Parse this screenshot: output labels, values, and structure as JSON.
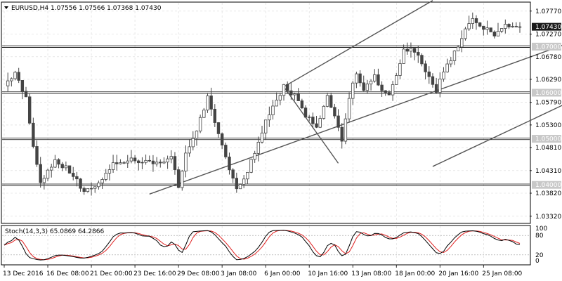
{
  "header": {
    "symbol": "EURUSD,H4",
    "ohlc": "1.07556 1.07566 1.07368 1.07430"
  },
  "oscillator": {
    "label": "Stoch(14,3,3) 65.0869 64.2866",
    "levels": [
      "100",
      "80",
      "20",
      "0"
    ],
    "k_color": "#000000",
    "d_color": "#e02020"
  },
  "colors": {
    "candle": "#444444",
    "grid": "#d8d8d8",
    "channel": "#555555",
    "level_badge": "#c8c8c8",
    "price_badge": "#1a1a1a"
  },
  "chart_data": {
    "type": "candlestick",
    "title": "EURUSD,H4",
    "ylim": [
      1.0318,
      1.0795
    ],
    "price_ticks": [
      "1.07770",
      "1.07270",
      "1.06780",
      "1.06290",
      "1.05790",
      "1.05300",
      "1.04810",
      "1.04310",
      "1.03820",
      "1.03320"
    ],
    "current_price": "1.07430",
    "horizontal_levels": [
      {
        "value": 1.07,
        "label": "1.07000"
      },
      {
        "value": 1.06,
        "label": "1.06000"
      },
      {
        "value": 1.05,
        "label": "1.05000"
      },
      {
        "value": 1.04,
        "label": "1.04000"
      }
    ],
    "date_ticks": [
      "13 Dec 2016",
      "16 Dec 08:00",
      "21 Dec 00:00",
      "23 Dec 16:00",
      "29 Dec 08:00",
      "3 Jan 08:00",
      "6 Jan 00:00",
      "10 Jan 16:00",
      "13 Jan 08:00",
      "18 Jan 00:00",
      "20 Jan 16:00",
      "25 Jan 08:00"
    ],
    "trendlines": [
      {
        "from": [
          40,
          1.038
        ],
        "to": [
          188,
          1.08
        ]
      },
      {
        "from": [
          118,
          1.044
        ],
        "to": [
          188,
          1.07
        ]
      },
      {
        "from": [
          77,
          1.0613
        ],
        "to": [
          92,
          1.0447
        ]
      },
      {
        "from": [
          77,
          1.0613
        ],
        "to": [
          118,
          1.08
        ]
      }
    ],
    "anchors": [
      {
        "i": 0,
        "price": 1.0615
      },
      {
        "i": 3,
        "price": 1.0645
      },
      {
        "i": 6,
        "price": 1.059
      },
      {
        "i": 8,
        "price": 1.048
      },
      {
        "i": 10,
        "price": 1.0405
      },
      {
        "i": 14,
        "price": 1.0455
      },
      {
        "i": 18,
        "price": 1.043
      },
      {
        "i": 22,
        "price": 1.0385
      },
      {
        "i": 26,
        "price": 1.0405
      },
      {
        "i": 30,
        "price": 1.0445
      },
      {
        "i": 34,
        "price": 1.0455
      },
      {
        "i": 38,
        "price": 1.045
      },
      {
        "i": 42,
        "price": 1.045
      },
      {
        "i": 46,
        "price": 1.046
      },
      {
        "i": 48,
        "price": 1.0395
      },
      {
        "i": 50,
        "price": 1.0465
      },
      {
        "i": 53,
        "price": 1.052
      },
      {
        "i": 56,
        "price": 1.059
      },
      {
        "i": 58,
        "price": 1.053
      },
      {
        "i": 61,
        "price": 1.046
      },
      {
        "i": 64,
        "price": 1.0395
      },
      {
        "i": 66,
        "price": 1.041
      },
      {
        "i": 69,
        "price": 1.047
      },
      {
        "i": 72,
        "price": 1.0535
      },
      {
        "i": 74,
        "price": 1.057
      },
      {
        "i": 77,
        "price": 1.0613
      },
      {
        "i": 80,
        "price": 1.0595
      },
      {
        "i": 83,
        "price": 1.055
      },
      {
        "i": 86,
        "price": 1.053
      },
      {
        "i": 89,
        "price": 1.059
      },
      {
        "i": 91,
        "price": 1.0555
      },
      {
        "i": 93,
        "price": 1.05
      },
      {
        "i": 95,
        "price": 1.059
      },
      {
        "i": 97,
        "price": 1.0645
      },
      {
        "i": 99,
        "price": 1.061
      },
      {
        "i": 102,
        "price": 1.064
      },
      {
        "i": 104,
        "price": 1.0605
      },
      {
        "i": 106,
        "price": 1.059
      },
      {
        "i": 108,
        "price": 1.064
      },
      {
        "i": 110,
        "price": 1.069
      },
      {
        "i": 112,
        "price": 1.07
      },
      {
        "i": 114,
        "price": 1.068
      },
      {
        "i": 117,
        "price": 1.063
      },
      {
        "i": 119,
        "price": 1.0605
      },
      {
        "i": 121,
        "price": 1.0645
      },
      {
        "i": 123,
        "price": 1.067
      },
      {
        "i": 125,
        "price": 1.07
      },
      {
        "i": 127,
        "price": 1.0735
      },
      {
        "i": 129,
        "price": 1.0755
      },
      {
        "i": 131,
        "price": 1.0745
      },
      {
        "i": 133,
        "price": 1.074
      },
      {
        "i": 135,
        "price": 1.072
      },
      {
        "i": 137,
        "price": 1.074
      },
      {
        "i": 139,
        "price": 1.0748
      },
      {
        "i": 141,
        "price": 1.0743
      }
    ]
  }
}
